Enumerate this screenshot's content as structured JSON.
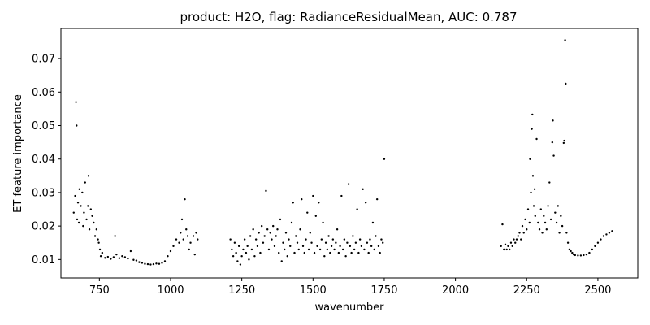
{
  "chart_data": {
    "type": "scatter",
    "title": "product: H2O, flag: RadianceResidualMean, AUC: 0.787",
    "xlabel": "wavenumber",
    "ylabel": "ET feature importance",
    "xlim": [
      615,
      2640
    ],
    "ylim": [
      0.0045,
      0.079
    ],
    "xticks": [
      750,
      1000,
      1250,
      1500,
      1750,
      2000,
      2250,
      2500
    ],
    "yticks": [
      0.01,
      0.02,
      0.03,
      0.04,
      0.05,
      0.06,
      0.07
    ],
    "grid": false,
    "legend": "none",
    "marker_color": "#000000",
    "series": [
      {
        "points": [
          [
            660,
            0.024
          ],
          [
            665,
            0.029
          ],
          [
            668,
            0.057
          ],
          [
            670,
            0.05
          ],
          [
            672,
            0.022
          ],
          [
            675,
            0.027
          ],
          [
            678,
            0.021
          ],
          [
            680,
            0.031
          ],
          [
            685,
            0.026
          ],
          [
            690,
            0.03
          ],
          [
            693,
            0.02
          ],
          [
            696,
            0.024
          ],
          [
            700,
            0.033
          ],
          [
            705,
            0.022
          ],
          [
            710,
            0.026
          ],
          [
            712,
            0.035
          ],
          [
            715,
            0.019
          ],
          [
            720,
            0.025
          ],
          [
            725,
            0.023
          ],
          [
            730,
            0.021
          ],
          [
            735,
            0.017
          ],
          [
            740,
            0.019
          ],
          [
            745,
            0.016
          ],
          [
            748,
            0.015
          ],
          [
            752,
            0.013
          ],
          [
            755,
            0.011
          ],
          [
            760,
            0.012
          ],
          [
            770,
            0.0105
          ],
          [
            780,
            0.0108
          ],
          [
            790,
            0.0102
          ],
          [
            800,
            0.0107
          ],
          [
            805,
            0.017
          ],
          [
            810,
            0.0115
          ],
          [
            820,
            0.0104
          ],
          [
            830,
            0.011
          ],
          [
            840,
            0.0107
          ],
          [
            850,
            0.0103
          ],
          [
            860,
            0.0125
          ],
          [
            870,
            0.0099
          ],
          [
            880,
            0.0097
          ],
          [
            890,
            0.0092
          ],
          [
            900,
            0.009
          ],
          [
            910,
            0.0087
          ],
          [
            920,
            0.0086
          ],
          [
            930,
            0.0085
          ],
          [
            940,
            0.0086
          ],
          [
            950,
            0.0088
          ],
          [
            960,
            0.0087
          ],
          [
            970,
            0.009
          ],
          [
            980,
            0.0095
          ],
          [
            990,
            0.011
          ],
          [
            1000,
            0.0125
          ],
          [
            1010,
            0.014
          ],
          [
            1020,
            0.016
          ],
          [
            1030,
            0.015
          ],
          [
            1035,
            0.018
          ],
          [
            1040,
            0.022
          ],
          [
            1045,
            0.016
          ],
          [
            1050,
            0.028
          ],
          [
            1055,
            0.019
          ],
          [
            1060,
            0.017
          ],
          [
            1065,
            0.013
          ],
          [
            1070,
            0.015
          ],
          [
            1080,
            0.017
          ],
          [
            1085,
            0.0115
          ],
          [
            1090,
            0.018
          ],
          [
            1095,
            0.016
          ],
          [
            1210,
            0.016
          ],
          [
            1215,
            0.013
          ],
          [
            1220,
            0.011
          ],
          [
            1225,
            0.015
          ],
          [
            1230,
            0.012
          ],
          [
            1235,
            0.0095
          ],
          [
            1240,
            0.014
          ],
          [
            1245,
            0.0085
          ],
          [
            1250,
            0.011
          ],
          [
            1255,
            0.013
          ],
          [
            1260,
            0.016
          ],
          [
            1265,
            0.012
          ],
          [
            1270,
            0.014
          ],
          [
            1275,
            0.01
          ],
          [
            1280,
            0.017
          ],
          [
            1285,
            0.013
          ],
          [
            1290,
            0.019
          ],
          [
            1295,
            0.011
          ],
          [
            1300,
            0.016
          ],
          [
            1305,
            0.014
          ],
          [
            1310,
            0.018
          ],
          [
            1315,
            0.012
          ],
          [
            1320,
            0.02
          ],
          [
            1325,
            0.015
          ],
          [
            1330,
            0.017
          ],
          [
            1335,
            0.0305
          ],
          [
            1340,
            0.019
          ],
          [
            1345,
            0.013
          ],
          [
            1350,
            0.018
          ],
          [
            1355,
            0.016
          ],
          [
            1360,
            0.02
          ],
          [
            1365,
            0.014
          ],
          [
            1370,
            0.017
          ],
          [
            1375,
            0.019
          ],
          [
            1380,
            0.012
          ],
          [
            1385,
            0.022
          ],
          [
            1390,
            0.0095
          ],
          [
            1395,
            0.015
          ],
          [
            1400,
            0.013
          ],
          [
            1405,
            0.018
          ],
          [
            1410,
            0.011
          ],
          [
            1415,
            0.016
          ],
          [
            1420,
            0.014
          ],
          [
            1425,
            0.021
          ],
          [
            1430,
            0.027
          ],
          [
            1435,
            0.012
          ],
          [
            1440,
            0.017
          ],
          [
            1445,
            0.015
          ],
          [
            1450,
            0.013
          ],
          [
            1455,
            0.019
          ],
          [
            1460,
            0.028
          ],
          [
            1465,
            0.014
          ],
          [
            1470,
            0.012
          ],
          [
            1475,
            0.016
          ],
          [
            1480,
            0.024
          ],
          [
            1485,
            0.013
          ],
          [
            1490,
            0.018
          ],
          [
            1495,
            0.015
          ],
          [
            1500,
            0.029
          ],
          [
            1505,
            0.012
          ],
          [
            1510,
            0.023
          ],
          [
            1515,
            0.014
          ],
          [
            1520,
            0.027
          ],
          [
            1525,
            0.013
          ],
          [
            1530,
            0.016
          ],
          [
            1535,
            0.021
          ],
          [
            1540,
            0.011
          ],
          [
            1545,
            0.015
          ],
          [
            1550,
            0.013
          ],
          [
            1555,
            0.017
          ],
          [
            1560,
            0.012
          ],
          [
            1565,
            0.014
          ],
          [
            1570,
            0.016
          ],
          [
            1575,
            0.013
          ],
          [
            1580,
            0.015
          ],
          [
            1585,
            0.019
          ],
          [
            1590,
            0.012
          ],
          [
            1595,
            0.014
          ],
          [
            1600,
            0.029
          ],
          [
            1605,
            0.013
          ],
          [
            1610,
            0.016
          ],
          [
            1615,
            0.011
          ],
          [
            1620,
            0.015
          ],
          [
            1625,
            0.0325
          ],
          [
            1630,
            0.014
          ],
          [
            1635,
            0.012
          ],
          [
            1640,
            0.017
          ],
          [
            1645,
            0.013
          ],
          [
            1650,
            0.015
          ],
          [
            1655,
            0.025
          ],
          [
            1660,
            0.012
          ],
          [
            1665,
            0.016
          ],
          [
            1670,
            0.014
          ],
          [
            1675,
            0.031
          ],
          [
            1680,
            0.013
          ],
          [
            1685,
            0.027
          ],
          [
            1690,
            0.015
          ],
          [
            1695,
            0.012
          ],
          [
            1700,
            0.016
          ],
          [
            1705,
            0.014
          ],
          [
            1710,
            0.021
          ],
          [
            1715,
            0.013
          ],
          [
            1720,
            0.017
          ],
          [
            1725,
            0.028
          ],
          [
            1730,
            0.014
          ],
          [
            1735,
            0.012
          ],
          [
            1740,
            0.016
          ],
          [
            1745,
            0.015
          ],
          [
            1750,
            0.04
          ],
          [
            2160,
            0.014
          ],
          [
            2165,
            0.0205
          ],
          [
            2170,
            0.013
          ],
          [
            2175,
            0.0145
          ],
          [
            2180,
            0.013
          ],
          [
            2185,
            0.014
          ],
          [
            2190,
            0.013
          ],
          [
            2195,
            0.015
          ],
          [
            2200,
            0.014
          ],
          [
            2205,
            0.016
          ],
          [
            2210,
            0.015
          ],
          [
            2215,
            0.016
          ],
          [
            2220,
            0.017
          ],
          [
            2225,
            0.018
          ],
          [
            2230,
            0.016
          ],
          [
            2235,
            0.02
          ],
          [
            2240,
            0.018
          ],
          [
            2245,
            0.022
          ],
          [
            2250,
            0.019
          ],
          [
            2255,
            0.025
          ],
          [
            2260,
            0.021
          ],
          [
            2262,
            0.04
          ],
          [
            2265,
            0.03
          ],
          [
            2268,
            0.049
          ],
          [
            2270,
            0.0533
          ],
          [
            2272,
            0.035
          ],
          [
            2275,
            0.026
          ],
          [
            2278,
            0.031
          ],
          [
            2280,
            0.023
          ],
          [
            2285,
            0.046
          ],
          [
            2290,
            0.021
          ],
          [
            2295,
            0.019
          ],
          [
            2300,
            0.025
          ],
          [
            2305,
            0.018
          ],
          [
            2310,
            0.023
          ],
          [
            2315,
            0.021
          ],
          [
            2320,
            0.019
          ],
          [
            2325,
            0.026
          ],
          [
            2330,
            0.033
          ],
          [
            2335,
            0.022
          ],
          [
            2340,
            0.045
          ],
          [
            2342,
            0.0515
          ],
          [
            2345,
            0.041
          ],
          [
            2350,
            0.024
          ],
          [
            2355,
            0.021
          ],
          [
            2360,
            0.026
          ],
          [
            2365,
            0.018
          ],
          [
            2370,
            0.023
          ],
          [
            2375,
            0.02
          ],
          [
            2380,
            0.0448
          ],
          [
            2382,
            0.0455
          ],
          [
            2385,
            0.0755
          ],
          [
            2387,
            0.0625
          ],
          [
            2390,
            0.018
          ],
          [
            2395,
            0.015
          ],
          [
            2400,
            0.013
          ],
          [
            2405,
            0.0125
          ],
          [
            2410,
            0.012
          ],
          [
            2415,
            0.0115
          ],
          [
            2420,
            0.0113
          ],
          [
            2430,
            0.0112
          ],
          [
            2440,
            0.0112
          ],
          [
            2450,
            0.0113
          ],
          [
            2460,
            0.0115
          ],
          [
            2470,
            0.012
          ],
          [
            2480,
            0.013
          ],
          [
            2490,
            0.014
          ],
          [
            2500,
            0.015
          ],
          [
            2510,
            0.016
          ],
          [
            2520,
            0.017
          ],
          [
            2530,
            0.0175
          ],
          [
            2540,
            0.018
          ],
          [
            2550,
            0.0185
          ]
        ]
      }
    ]
  }
}
